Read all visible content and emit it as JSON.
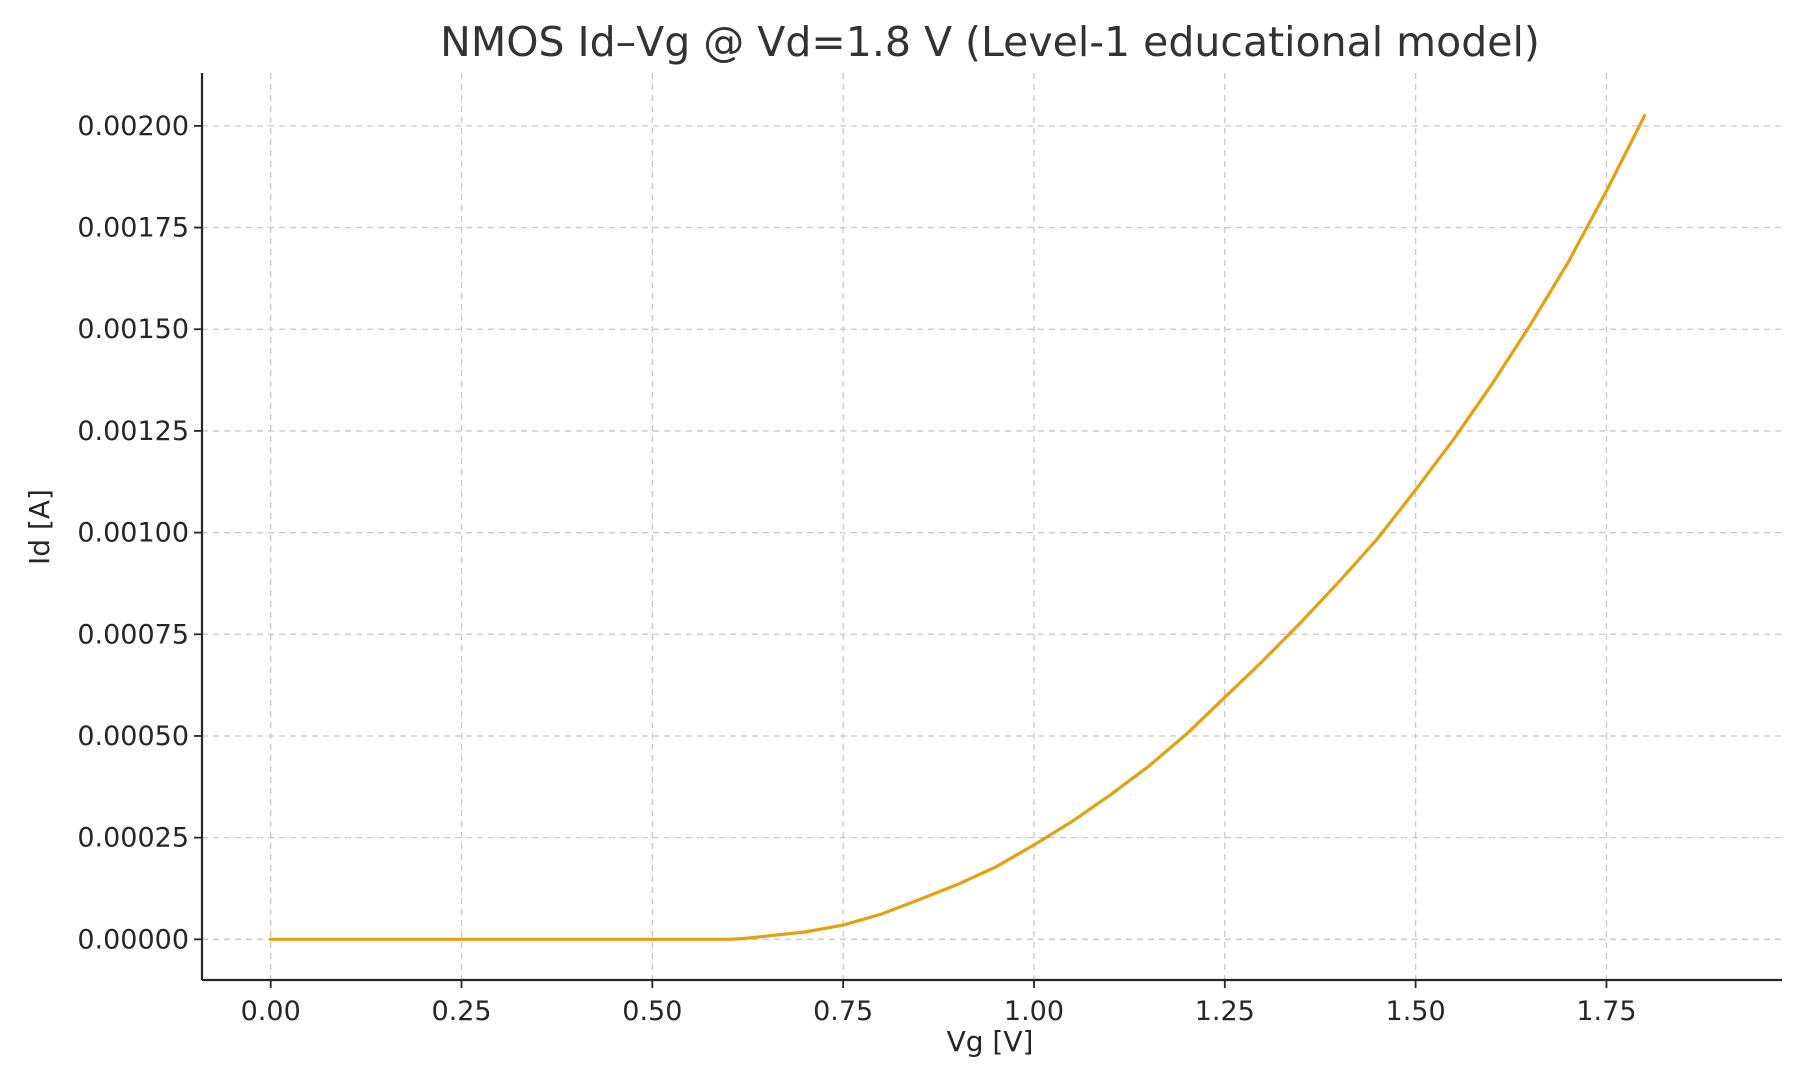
{
  "chart_data": {
    "type": "line",
    "title": "NMOS Id–Vg @ Vd=1.8 V (Level-1 educational model)",
    "xlabel": "Vg [V]",
    "ylabel": "Id [A]",
    "xlim": [
      -0.09,
      1.98
    ],
    "ylim": [
      -0.0001,
      0.00213
    ],
    "x_ticks": [
      0.0,
      0.25,
      0.5,
      0.75,
      1.0,
      1.25,
      1.5,
      1.75
    ],
    "x_tick_labels": [
      "0.00",
      "0.25",
      "0.50",
      "0.75",
      "1.00",
      "1.25",
      "1.50",
      "1.75"
    ],
    "y_ticks": [
      0.0,
      0.00025,
      0.0005,
      0.00075,
      0.001,
      0.00125,
      0.0015,
      0.00175,
      0.002
    ],
    "y_tick_labels": [
      "0.00000",
      "0.00025",
      "0.00050",
      "0.00075",
      "0.00100",
      "0.00125",
      "0.00150",
      "0.00175",
      "0.00200"
    ],
    "grid": true,
    "line_color": "#e5a00d",
    "series": [
      {
        "x": [
          0.0,
          0.1,
          0.2,
          0.3,
          0.4,
          0.5,
          0.55,
          0.6,
          0.62,
          0.65,
          0.7,
          0.75,
          0.8,
          0.85,
          0.9,
          0.95,
          1.0,
          1.05,
          1.1,
          1.15,
          1.2,
          1.25,
          1.3,
          1.35,
          1.4,
          1.45,
          1.5,
          1.55,
          1.6,
          1.65,
          1.7,
          1.75,
          1.8
        ],
        "y": [
          0.0,
          0.0,
          0.0,
          0.0,
          0.0,
          0.0,
          0.0,
          0.0,
          2e-06,
          8e-06,
          1.8e-05,
          3.5e-05,
          6.2e-05,
          9.8e-05,
          0.000135,
          0.000178,
          0.000232,
          0.00029,
          0.000355,
          0.000425,
          0.000505,
          0.000595,
          0.000685,
          0.00078,
          0.00088,
          0.000985,
          0.001105,
          0.00123,
          0.001365,
          0.00151,
          0.001665,
          0.00184,
          0.002025
        ]
      }
    ]
  }
}
